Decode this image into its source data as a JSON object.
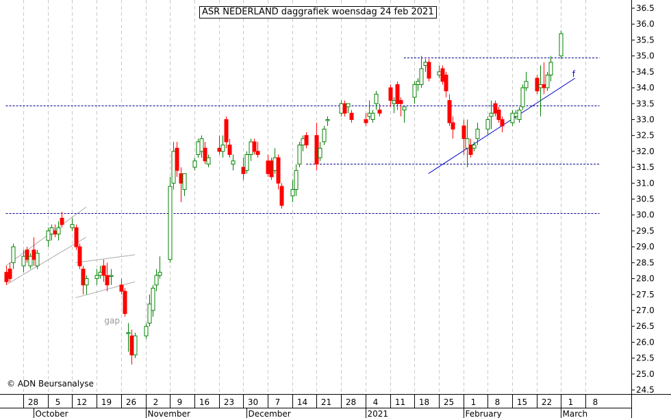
{
  "chart_data": {
    "type": "candlestick",
    "title": "ASR NEDERLAND daggrafiek woensdag 24 feb 2021",
    "copyright": "© ADN Beursanalyse",
    "ylim": [
      24.25,
      36.75
    ],
    "y_ticks": [
      "24.5",
      "25.0",
      "25.5",
      "26.0",
      "26.5",
      "27.0",
      "27.5",
      "28.0",
      "28.5",
      "29.0",
      "29.5",
      "30.0",
      "30.5",
      "31.0",
      "31.5",
      "32.0",
      "32.5",
      "33.0",
      "33.5",
      "34.0",
      "34.5",
      "35.0",
      "35.5",
      "36.0",
      "36.5"
    ],
    "day_labels": [
      {
        "label": "28",
        "date": "2020-09-28"
      },
      {
        "label": "5",
        "date": "2020-10-05"
      },
      {
        "label": "12",
        "date": "2020-10-12"
      },
      {
        "label": "19",
        "date": "2020-10-19"
      },
      {
        "label": "26",
        "date": "2020-10-26"
      },
      {
        "label": "2",
        "date": "2020-11-02"
      },
      {
        "label": "9",
        "date": "2020-11-09"
      },
      {
        "label": "16",
        "date": "2020-11-16"
      },
      {
        "label": "23",
        "date": "2020-11-23"
      },
      {
        "label": "30",
        "date": "2020-11-30"
      },
      {
        "label": "7",
        "date": "2020-12-07"
      },
      {
        "label": "14",
        "date": "2020-12-14"
      },
      {
        "label": "21",
        "date": "2020-12-21"
      },
      {
        "label": "28",
        "date": "2020-12-28"
      },
      {
        "label": "4",
        "date": "2021-01-04"
      },
      {
        "label": "11",
        "date": "2021-01-11"
      },
      {
        "label": "18",
        "date": "2021-01-18"
      },
      {
        "label": "25",
        "date": "2021-01-25"
      },
      {
        "label": "1",
        "date": "2021-02-01"
      },
      {
        "label": "8",
        "date": "2021-02-08"
      },
      {
        "label": "15",
        "date": "2021-02-15"
      },
      {
        "label": "22",
        "date": "2021-02-22"
      },
      {
        "label": "1",
        "date": "2021-03-01"
      },
      {
        "label": "8",
        "date": "2021-03-08"
      }
    ],
    "month_labels": [
      {
        "label": "October",
        "date": "2020-10-01"
      },
      {
        "label": "November",
        "date": "2020-11-02"
      },
      {
        "label": "December",
        "date": "2020-12-01"
      },
      {
        "label": "2021",
        "date": "2021-01-04"
      },
      {
        "label": "February",
        "date": "2021-02-01"
      },
      {
        "label": "March",
        "date": "2021-03-01"
      }
    ],
    "horizontal_lines": [
      {
        "y": 30.05,
        "from": "2020-09-23",
        "to": "2021-03-12",
        "style": "dashed",
        "color": "#00008b"
      },
      {
        "y": 33.45,
        "from": "2020-09-23",
        "to": "2021-03-12",
        "style": "dashed",
        "color": "#00008b"
      },
      {
        "y": 34.95,
        "from": "2021-01-15",
        "to": "2021-03-12",
        "style": "dashed",
        "color": "#00008b"
      },
      {
        "y": 31.6,
        "from": "2020-12-18",
        "to": "2021-03-12",
        "style": "dashed",
        "color": "#00008b"
      }
    ],
    "trend_lines": [
      {
        "from": [
          "2021-01-22",
          31.3
        ],
        "to": [
          "2021-03-05",
          34.3
        ],
        "color": "#0000cc"
      },
      {
        "from": [
          "2020-09-23",
          28.4
        ],
        "to": [
          "2020-10-16",
          30.25
        ],
        "color": "#aaaaaa"
      },
      {
        "from": [
          "2020-09-23",
          27.8
        ],
        "to": [
          "2020-10-16",
          29.3
        ],
        "color": "#aaaaaa"
      },
      {
        "from": [
          "2020-10-13",
          28.5
        ],
        "to": [
          "2020-10-30",
          28.75
        ],
        "color": "#aaaaaa"
      },
      {
        "from": [
          "2020-10-13",
          27.4
        ],
        "to": [
          "2020-10-30",
          27.9
        ],
        "color": "#aaaaaa"
      }
    ],
    "annotations": [
      {
        "text": "gap",
        "date": "2020-10-22",
        "y": 26.65,
        "color": "#999999"
      },
      {
        "text": "f",
        "date": "2021-03-05",
        "y": 34.4,
        "color": "#0000cc"
      }
    ],
    "colors": {
      "up": "#008000",
      "down": "#ff0000",
      "grid": "#c8c8c8",
      "ref": "#00008b"
    },
    "candles": [
      {
        "date": "2020-09-23",
        "open": 28.2,
        "high": 28.4,
        "low": 27.8,
        "close": 27.9
      },
      {
        "date": "2020-09-24",
        "open": 28.3,
        "high": 28.5,
        "low": 27.9,
        "close": 28.0
      },
      {
        "date": "2020-09-25",
        "open": 28.5,
        "high": 29.1,
        "low": 28.3,
        "close": 29.0
      },
      {
        "date": "2020-09-28",
        "open": 28.4,
        "high": 28.9,
        "low": 28.2,
        "close": 28.7
      },
      {
        "date": "2020-09-29",
        "open": 28.9,
        "high": 29.0,
        "low": 28.5,
        "close": 28.6
      },
      {
        "date": "2020-09-30",
        "open": 28.4,
        "high": 28.8,
        "low": 28.3,
        "close": 28.7
      },
      {
        "date": "2020-10-01",
        "open": 28.9,
        "high": 29.3,
        "low": 28.4,
        "close": 28.6
      },
      {
        "date": "2020-10-02",
        "open": 28.4,
        "high": 28.9,
        "low": 28.3,
        "close": 28.8
      },
      {
        "date": "2020-10-05",
        "open": 29.2,
        "high": 29.6,
        "low": 29.0,
        "close": 29.5
      },
      {
        "date": "2020-10-06",
        "open": 29.4,
        "high": 29.7,
        "low": 29.2,
        "close": 29.6
      },
      {
        "date": "2020-10-07",
        "open": 29.5,
        "high": 29.7,
        "low": 29.3,
        "close": 29.4
      },
      {
        "date": "2020-10-08",
        "open": 29.4,
        "high": 29.8,
        "low": 29.2,
        "close": 29.6
      },
      {
        "date": "2020-10-09",
        "open": 29.9,
        "high": 30.1,
        "low": 29.6,
        "close": 29.7
      },
      {
        "date": "2020-10-12",
        "open": 29.6,
        "high": 29.9,
        "low": 29.5,
        "close": 29.7
      },
      {
        "date": "2020-10-13",
        "open": 29.6,
        "high": 29.7,
        "low": 28.9,
        "close": 29.0
      },
      {
        "date": "2020-10-14",
        "open": 29.0,
        "high": 29.1,
        "low": 28.3,
        "close": 28.4
      },
      {
        "date": "2020-10-15",
        "open": 28.3,
        "high": 28.4,
        "low": 27.5,
        "close": 27.8
      },
      {
        "date": "2020-10-16",
        "open": 27.8,
        "high": 28.1,
        "low": 27.5,
        "close": 28.0
      },
      {
        "date": "2020-10-19",
        "open": 28.0,
        "high": 28.3,
        "low": 27.8,
        "close": 28.1
      },
      {
        "date": "2020-10-20",
        "open": 28.1,
        "high": 28.4,
        "low": 28.0,
        "close": 28.2
      },
      {
        "date": "2020-10-21",
        "open": 28.4,
        "high": 28.6,
        "low": 27.9,
        "close": 28.1
      },
      {
        "date": "2020-10-22",
        "open": 28.1,
        "high": 28.5,
        "low": 27.6,
        "close": 27.8
      },
      {
        "date": "2020-10-23",
        "open": 28.1,
        "high": 28.3,
        "low": 27.8,
        "close": 28.1
      },
      {
        "date": "2020-10-26",
        "open": 27.8,
        "high": 28.0,
        "low": 27.5,
        "close": 27.6
      },
      {
        "date": "2020-10-27",
        "open": 27.6,
        "high": 27.7,
        "low": 26.8,
        "close": 26.9
      },
      {
        "date": "2020-10-28",
        "open": 26.3,
        "high": 26.6,
        "low": 25.7,
        "close": 26.3
      },
      {
        "date": "2020-10-29",
        "open": 26.2,
        "high": 26.4,
        "low": 25.3,
        "close": 25.6
      },
      {
        "date": "2020-10-30",
        "open": 25.6,
        "high": 26.3,
        "low": 25.5,
        "close": 26.2
      },
      {
        "date": "2020-11-02",
        "open": 26.2,
        "high": 26.6,
        "low": 26.1,
        "close": 26.5
      },
      {
        "date": "2020-11-03",
        "open": 26.6,
        "high": 27.5,
        "low": 26.5,
        "close": 27.2
      },
      {
        "date": "2020-11-04",
        "open": 27.0,
        "high": 27.8,
        "low": 26.8,
        "close": 27.7
      },
      {
        "date": "2020-11-05",
        "open": 27.8,
        "high": 28.3,
        "low": 27.6,
        "close": 28.1
      },
      {
        "date": "2020-11-06",
        "open": 28.1,
        "high": 28.7,
        "low": 28.0,
        "close": 28.2
      },
      {
        "date": "2020-11-09",
        "open": 28.6,
        "high": 31.2,
        "low": 28.5,
        "close": 30.9
      },
      {
        "date": "2020-11-10",
        "open": 31.0,
        "high": 32.3,
        "low": 30.8,
        "close": 32.0
      },
      {
        "date": "2020-11-11",
        "open": 32.1,
        "high": 32.3,
        "low": 31.2,
        "close": 31.4
      },
      {
        "date": "2020-11-12",
        "open": 31.3,
        "high": 31.5,
        "low": 30.4,
        "close": 31.0
      },
      {
        "date": "2020-11-13",
        "open": 30.8,
        "high": 31.3,
        "low": 30.6,
        "close": 31.3
      },
      {
        "date": "2020-11-16",
        "open": 31.5,
        "high": 31.8,
        "low": 31.4,
        "close": 31.7
      },
      {
        "date": "2020-11-17",
        "open": 31.9,
        "high": 32.4,
        "low": 31.8,
        "close": 32.3
      },
      {
        "date": "2020-11-18",
        "open": 32.0,
        "high": 32.5,
        "low": 31.8,
        "close": 32.4
      },
      {
        "date": "2020-11-19",
        "open": 32.1,
        "high": 32.3,
        "low": 31.6,
        "close": 31.7
      },
      {
        "date": "2020-11-20",
        "open": 31.6,
        "high": 31.9,
        "low": 31.5,
        "close": 31.8
      },
      {
        "date": "2020-11-23",
        "open": 32.1,
        "high": 32.5,
        "low": 31.9,
        "close": 32.0
      },
      {
        "date": "2020-11-24",
        "open": 32.0,
        "high": 32.5,
        "low": 31.8,
        "close": 32.2
      },
      {
        "date": "2020-11-25",
        "open": 33.0,
        "high": 33.1,
        "low": 32.1,
        "close": 32.3
      },
      {
        "date": "2020-11-26",
        "open": 32.2,
        "high": 32.4,
        "low": 31.8,
        "close": 31.9
      },
      {
        "date": "2020-11-27",
        "open": 31.6,
        "high": 31.9,
        "low": 31.4,
        "close": 31.7
      },
      {
        "date": "2020-11-30",
        "open": 31.5,
        "high": 31.8,
        "low": 31.1,
        "close": 31.3
      },
      {
        "date": "2020-12-01",
        "open": 31.4,
        "high": 32.0,
        "low": 31.3,
        "close": 31.9
      },
      {
        "date": "2020-12-02",
        "open": 31.9,
        "high": 32.4,
        "low": 31.7,
        "close": 32.3
      },
      {
        "date": "2020-12-03",
        "open": 32.3,
        "high": 32.4,
        "low": 31.9,
        "close": 32.0
      },
      {
        "date": "2020-12-04",
        "open": 32.0,
        "high": 32.3,
        "low": 31.8,
        "close": 31.9
      },
      {
        "date": "2020-12-07",
        "open": 31.7,
        "high": 31.9,
        "low": 31.2,
        "close": 31.3
      },
      {
        "date": "2020-12-08",
        "open": 31.7,
        "high": 31.8,
        "low": 31.1,
        "close": 31.2
      },
      {
        "date": "2020-12-09",
        "open": 31.4,
        "high": 32.1,
        "low": 31.3,
        "close": 31.8
      },
      {
        "date": "2020-12-10",
        "open": 31.8,
        "high": 31.9,
        "low": 30.8,
        "close": 31.0
      },
      {
        "date": "2020-12-11",
        "open": 30.9,
        "high": 31.0,
        "low": 30.2,
        "close": 30.3
      },
      {
        "date": "2020-12-14",
        "open": 30.6,
        "high": 31.1,
        "low": 30.4,
        "close": 30.8
      },
      {
        "date": "2020-12-15",
        "open": 30.8,
        "high": 31.6,
        "low": 30.6,
        "close": 31.4
      },
      {
        "date": "2020-12-16",
        "open": 31.6,
        "high": 32.3,
        "low": 31.5,
        "close": 32.2
      },
      {
        "date": "2020-12-17",
        "open": 32.2,
        "high": 32.5,
        "low": 32.0,
        "close": 32.4
      },
      {
        "date": "2020-12-18",
        "open": 32.5,
        "high": 32.6,
        "low": 32.1,
        "close": 32.2
      },
      {
        "date": "2020-12-21",
        "open": 32.5,
        "high": 32.9,
        "low": 31.4,
        "close": 31.6
      },
      {
        "date": "2020-12-22",
        "open": 31.8,
        "high": 32.3,
        "low": 31.7,
        "close": 32.1
      },
      {
        "date": "2020-12-23",
        "open": 32.3,
        "high": 32.8,
        "low": 32.2,
        "close": 32.7
      },
      {
        "date": "2020-12-24",
        "open": 33.0,
        "high": 33.1,
        "low": 32.8,
        "close": 33.0
      },
      {
        "date": "2020-12-28",
        "open": 33.2,
        "high": 33.6,
        "low": 33.1,
        "close": 33.5
      },
      {
        "date": "2020-12-29",
        "open": 33.5,
        "high": 33.6,
        "low": 33.1,
        "close": 33.2
      },
      {
        "date": "2020-12-30",
        "open": 33.4,
        "high": 33.5,
        "low": 33.2,
        "close": 33.5
      },
      {
        "date": "2020-12-31",
        "open": 33.2,
        "high": 33.3,
        "low": 32.9,
        "close": 33.0
      },
      {
        "date": "2021-01-04",
        "open": 33.0,
        "high": 33.2,
        "low": 32.8,
        "close": 32.9
      },
      {
        "date": "2021-01-05",
        "open": 33.1,
        "high": 33.6,
        "low": 33.0,
        "close": 33.2
      },
      {
        "date": "2021-01-06",
        "open": 33.0,
        "high": 33.3,
        "low": 32.9,
        "close": 33.2
      },
      {
        "date": "2021-01-07",
        "open": 33.5,
        "high": 33.9,
        "low": 33.3,
        "close": 33.8
      },
      {
        "date": "2021-01-08",
        "open": 33.3,
        "high": 33.5,
        "low": 33.1,
        "close": 33.2
      },
      {
        "date": "2021-01-11",
        "open": 34.0,
        "high": 34.1,
        "low": 33.4,
        "close": 33.6
      },
      {
        "date": "2021-01-12",
        "open": 33.5,
        "high": 33.7,
        "low": 33.2,
        "close": 33.6
      },
      {
        "date": "2021-01-13",
        "open": 34.1,
        "high": 34.2,
        "low": 33.3,
        "close": 33.5
      },
      {
        "date": "2021-01-14",
        "open": 33.6,
        "high": 33.7,
        "low": 33.1,
        "close": 33.5
      },
      {
        "date": "2021-01-15",
        "open": 33.3,
        "high": 33.4,
        "low": 32.9,
        "close": 33.4
      },
      {
        "date": "2021-01-18",
        "open": 33.7,
        "high": 34.2,
        "low": 33.5,
        "close": 34.1
      },
      {
        "date": "2021-01-19",
        "open": 34.1,
        "high": 34.3,
        "low": 33.9,
        "close": 34.2
      },
      {
        "date": "2021-01-20",
        "open": 34.1,
        "high": 35.0,
        "low": 34.0,
        "close": 34.6
      },
      {
        "date": "2021-01-21",
        "open": 34.7,
        "high": 34.9,
        "low": 34.5,
        "close": 34.8
      },
      {
        "date": "2021-01-22",
        "open": 34.8,
        "high": 34.9,
        "low": 34.2,
        "close": 34.3
      },
      {
        "date": "2021-01-25",
        "open": 34.4,
        "high": 34.7,
        "low": 34.3,
        "close": 34.5
      },
      {
        "date": "2021-01-26",
        "open": 34.6,
        "high": 34.7,
        "low": 34.1,
        "close": 34.2
      },
      {
        "date": "2021-01-27",
        "open": 34.4,
        "high": 34.5,
        "low": 33.7,
        "close": 33.9
      },
      {
        "date": "2021-01-28",
        "open": 33.6,
        "high": 33.8,
        "low": 32.8,
        "close": 32.9
      },
      {
        "date": "2021-01-29",
        "open": 32.9,
        "high": 33.1,
        "low": 32.4,
        "close": 32.7
      },
      {
        "date": "2021-02-01",
        "open": 32.8,
        "high": 33.0,
        "low": 31.9,
        "close": 32.4
      },
      {
        "date": "2021-02-02",
        "open": 32.1,
        "high": 33.0,
        "low": 31.5,
        "close": 32.4
      },
      {
        "date": "2021-02-03",
        "open": 32.2,
        "high": 32.4,
        "low": 31.8,
        "close": 31.9
      },
      {
        "date": "2021-02-04",
        "open": 32.1,
        "high": 32.3,
        "low": 32.0,
        "close": 32.2
      },
      {
        "date": "2021-02-05",
        "open": 32.4,
        "high": 32.9,
        "low": 32.2,
        "close": 32.7
      },
      {
        "date": "2021-02-08",
        "open": 32.7,
        "high": 33.1,
        "low": 32.5,
        "close": 33.0
      },
      {
        "date": "2021-02-09",
        "open": 33.1,
        "high": 33.6,
        "low": 32.7,
        "close": 33.2
      },
      {
        "date": "2021-02-10",
        "open": 33.5,
        "high": 33.6,
        "low": 33.1,
        "close": 33.2
      },
      {
        "date": "2021-02-11",
        "open": 33.3,
        "high": 33.4,
        "low": 32.9,
        "close": 33.0
      },
      {
        "date": "2021-02-12",
        "open": 33.0,
        "high": 33.1,
        "low": 32.6,
        "close": 32.8
      },
      {
        "date": "2021-02-15",
        "open": 32.9,
        "high": 33.3,
        "low": 32.8,
        "close": 33.2
      },
      {
        "date": "2021-02-16",
        "open": 33.1,
        "high": 33.3,
        "low": 33.0,
        "close": 33.2
      },
      {
        "date": "2021-02-17",
        "open": 33.0,
        "high": 33.4,
        "low": 32.9,
        "close": 33.3
      },
      {
        "date": "2021-02-18",
        "open": 33.4,
        "high": 34.1,
        "low": 33.3,
        "close": 34.0
      },
      {
        "date": "2021-02-19",
        "open": 34.0,
        "high": 34.5,
        "low": 33.9,
        "close": 34.2
      },
      {
        "date": "2021-02-22",
        "open": 34.3,
        "high": 34.4,
        "low": 33.8,
        "close": 33.9
      },
      {
        "date": "2021-02-23",
        "open": 34.0,
        "high": 34.7,
        "low": 33.1,
        "close": 34.1
      },
      {
        "date": "2021-02-24",
        "open": 34.1,
        "high": 34.8,
        "low": 33.8,
        "close": 34.0
      },
      {
        "date": "2021-02-25",
        "open": 34.0,
        "high": 34.5,
        "low": 33.9,
        "close": 34.4
      },
      {
        "date": "2021-02-26",
        "open": 34.4,
        "high": 35.0,
        "low": 34.2,
        "close": 34.8
      },
      {
        "date": "2021-03-01",
        "open": 35.0,
        "high": 35.8,
        "low": 34.9,
        "close": 35.7
      }
    ]
  }
}
